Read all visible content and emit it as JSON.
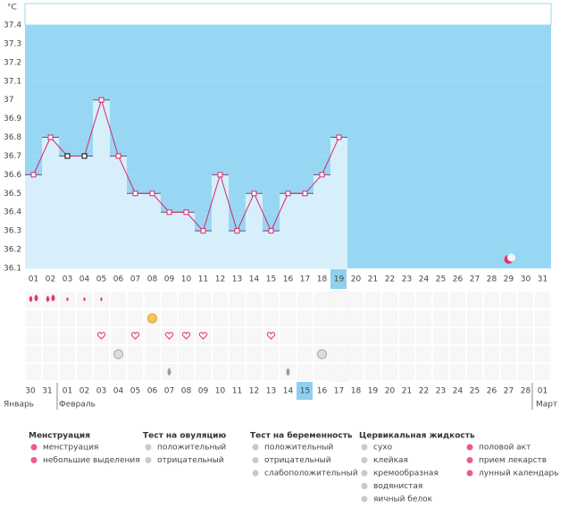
{
  "chart_data": {
    "type": "line",
    "y_label": "°C",
    "categories": [
      "01",
      "02",
      "03",
      "04",
      "05",
      "06",
      "07",
      "08",
      "09",
      "10",
      "11",
      "12",
      "13",
      "14",
      "15",
      "16",
      "17",
      "18",
      "19",
      "20",
      "21",
      "22",
      "23",
      "24",
      "25",
      "26",
      "27",
      "28",
      "29",
      "30",
      "31"
    ],
    "values": [
      36.6,
      36.8,
      36.7,
      36.7,
      37.0,
      36.7,
      36.5,
      36.5,
      36.4,
      36.4,
      36.3,
      36.6,
      36.3,
      36.5,
      36.3,
      36.5,
      36.5,
      36.6,
      36.8,
      null,
      null,
      null,
      null,
      null,
      null,
      null,
      null,
      null,
      null,
      null,
      null
    ],
    "ylim": [
      36.1,
      37.4
    ],
    "yticks": [
      36.1,
      36.2,
      36.3,
      36.4,
      36.5,
      36.6,
      36.7,
      36.8,
      36.9,
      37,
      37.1,
      37.2,
      37.3,
      37.4
    ],
    "color": "#d9266b",
    "grid": true,
    "dates": [
      {
        "label": "30",
        "weekend": false
      },
      {
        "label": "31",
        "weekend": false
      },
      {
        "label": "01",
        "weekend": true
      },
      {
        "label": "02",
        "weekend": true
      },
      {
        "label": "03",
        "weekend": false
      },
      {
        "label": "04",
        "weekend": false
      },
      {
        "label": "05",
        "weekend": false
      },
      {
        "label": "06",
        "weekend": false
      },
      {
        "label": "07",
        "weekend": false
      },
      {
        "label": "08",
        "weekend": true
      },
      {
        "label": "09",
        "weekend": true
      },
      {
        "label": "10",
        "weekend": false
      },
      {
        "label": "11",
        "weekend": false
      },
      {
        "label": "12",
        "weekend": false
      },
      {
        "label": "13",
        "weekend": false
      },
      {
        "label": "14",
        "weekend": false
      },
      {
        "label": "15",
        "weekend": true
      },
      {
        "label": "16",
        "weekend": true
      },
      {
        "label": "17",
        "weekend": false
      },
      {
        "label": "18",
        "weekend": false
      },
      {
        "label": "19",
        "weekend": false
      },
      {
        "label": "20",
        "weekend": false
      },
      {
        "label": "21",
        "weekend": false
      },
      {
        "label": "22",
        "weekend": true
      },
      {
        "label": "23",
        "weekend": true
      },
      {
        "label": "24",
        "weekend": false
      },
      {
        "label": "25",
        "weekend": false
      },
      {
        "label": "26",
        "weekend": false
      },
      {
        "label": "27",
        "weekend": false
      },
      {
        "label": "28",
        "weekend": false
      },
      {
        "label": "01",
        "weekend": true
      }
    ],
    "months": [
      "Январь",
      "Февраль",
      "Март"
    ]
  },
  "legend": [
    {
      "title": "Менструация",
      "items": [
        "менструация",
        "небольшие выделения"
      ]
    },
    {
      "title": "Тест на овуляцию",
      "items": [
        "положительный",
        "отрицательный"
      ]
    },
    {
      "title": "Тест на беременность",
      "items": [
        "положительный",
        "отрицательный",
        "слабоположительный"
      ]
    },
    {
      "title": "Цервикальная жидкость",
      "items": [
        "сухо",
        "клейкая",
        "кремообразная",
        "водянистая",
        "яичный белок"
      ]
    },
    {
      "items": [
        "половой акт",
        "прием лекарств",
        "лунный календарь"
      ]
    }
  ]
}
